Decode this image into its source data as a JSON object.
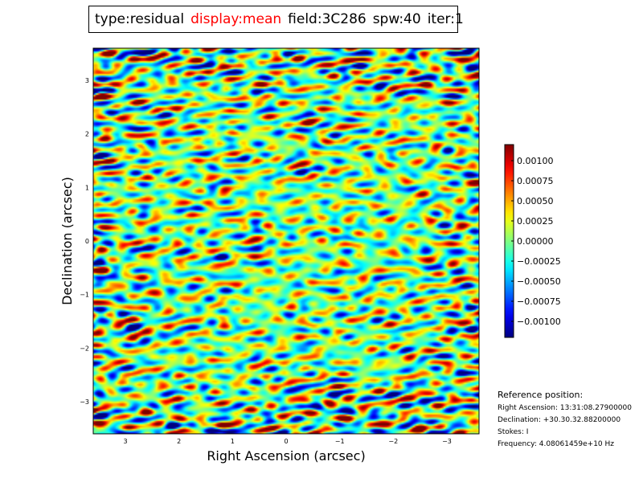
{
  "title": {
    "type": "type:residual",
    "display": "display:mean",
    "field": "field:3C286",
    "spw": "spw:40",
    "iter": "iter:1"
  },
  "chart_data": {
    "type": "heatmap",
    "xlabel": "Right Ascension (arcsec)",
    "ylabel": "Declination (arcsec)",
    "xlim": [
      3.6,
      -3.6
    ],
    "ylim": [
      -3.6,
      3.6
    ],
    "xticks": [
      3,
      2,
      1,
      0,
      -1,
      -2,
      -3
    ],
    "yticks": [
      3,
      2,
      1,
      0,
      -1,
      -2,
      -3
    ],
    "xtick_labels": [
      "3",
      "2",
      "1",
      "0",
      "−1",
      "−2",
      "−3"
    ],
    "ytick_labels": [
      "3",
      "2",
      "1",
      "0",
      "−1",
      "−2",
      "−3"
    ],
    "colormap": "jet",
    "colorbar": {
      "vmin": -0.0012,
      "vmax": 0.0012,
      "ticks": [
        0.001,
        0.00075,
        0.0005,
        0.00025,
        0.0,
        -0.00025,
        -0.0005,
        -0.00075,
        -0.001
      ],
      "tick_labels": [
        "0.00100",
        "0.00075",
        "0.00050",
        "0.00025",
        "0.00000",
        "−0.00025",
        "−0.00050",
        "−0.00075",
        "−0.00100"
      ]
    }
  },
  "reference": {
    "title": "Reference position:",
    "ra": "Right Ascension: 13:31:08.27900000",
    "dec": "Declination: +30.30.32.88200000",
    "stokes": "Stokes: I",
    "freq": "Frequency: 4.08061459e+10 Hz"
  }
}
